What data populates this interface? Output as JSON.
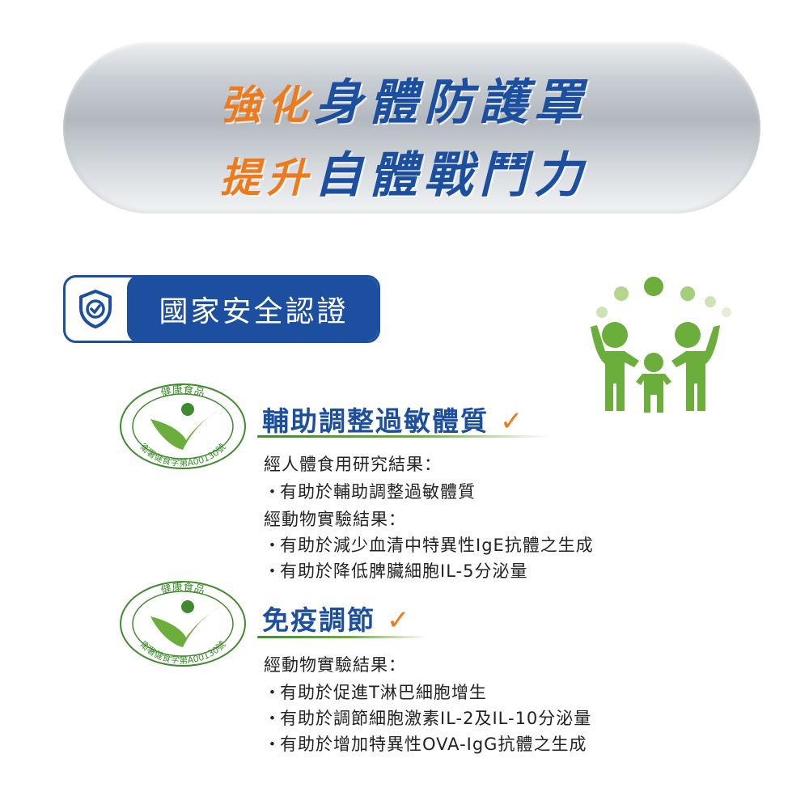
{
  "banner": {
    "line1_prefix": "強化",
    "line1_main": "身體防護罩",
    "line2_prefix": "提升",
    "line2_main": "自體戰鬥力"
  },
  "certification": {
    "label": "國家安全認證",
    "icon": "shield-check-icon"
  },
  "seal": {
    "top_text": "健康食品",
    "bottom_text": "衛署健食字第A00130號"
  },
  "claims": [
    {
      "title": "輔助調整過敏體質",
      "check": "✓",
      "lines": [
        {
          "text": "經人體食用研究結果：",
          "bullet": false
        },
        {
          "text": "有助於輔助調整過敏體質",
          "bullet": true
        },
        {
          "text": "經動物實驗結果：",
          "bullet": false
        },
        {
          "text": "有助於減少血清中特異性IgE抗體之生成",
          "bullet": true
        },
        {
          "text": "有助於降低脾臟細胞IL-5分泌量",
          "bullet": true
        }
      ]
    },
    {
      "title": "免疫調節",
      "check": "✓",
      "lines": [
        {
          "text": "經動物實驗結果：",
          "bullet": false
        },
        {
          "text": "有助於促進T淋巴細胞增生",
          "bullet": true
        },
        {
          "text": "有助於調節細胞激素IL-2及IL-10分泌量",
          "bullet": true
        },
        {
          "text": "有助於增加特異性OVA-IgG抗體之生成",
          "bullet": true
        }
      ]
    }
  ],
  "bullet_char": "・",
  "colors": {
    "brand_blue": "#1c4f9f",
    "accent_orange": "#ee7a1c",
    "seal_green": "#3f8c2e",
    "family_green": "#6cae3c"
  }
}
